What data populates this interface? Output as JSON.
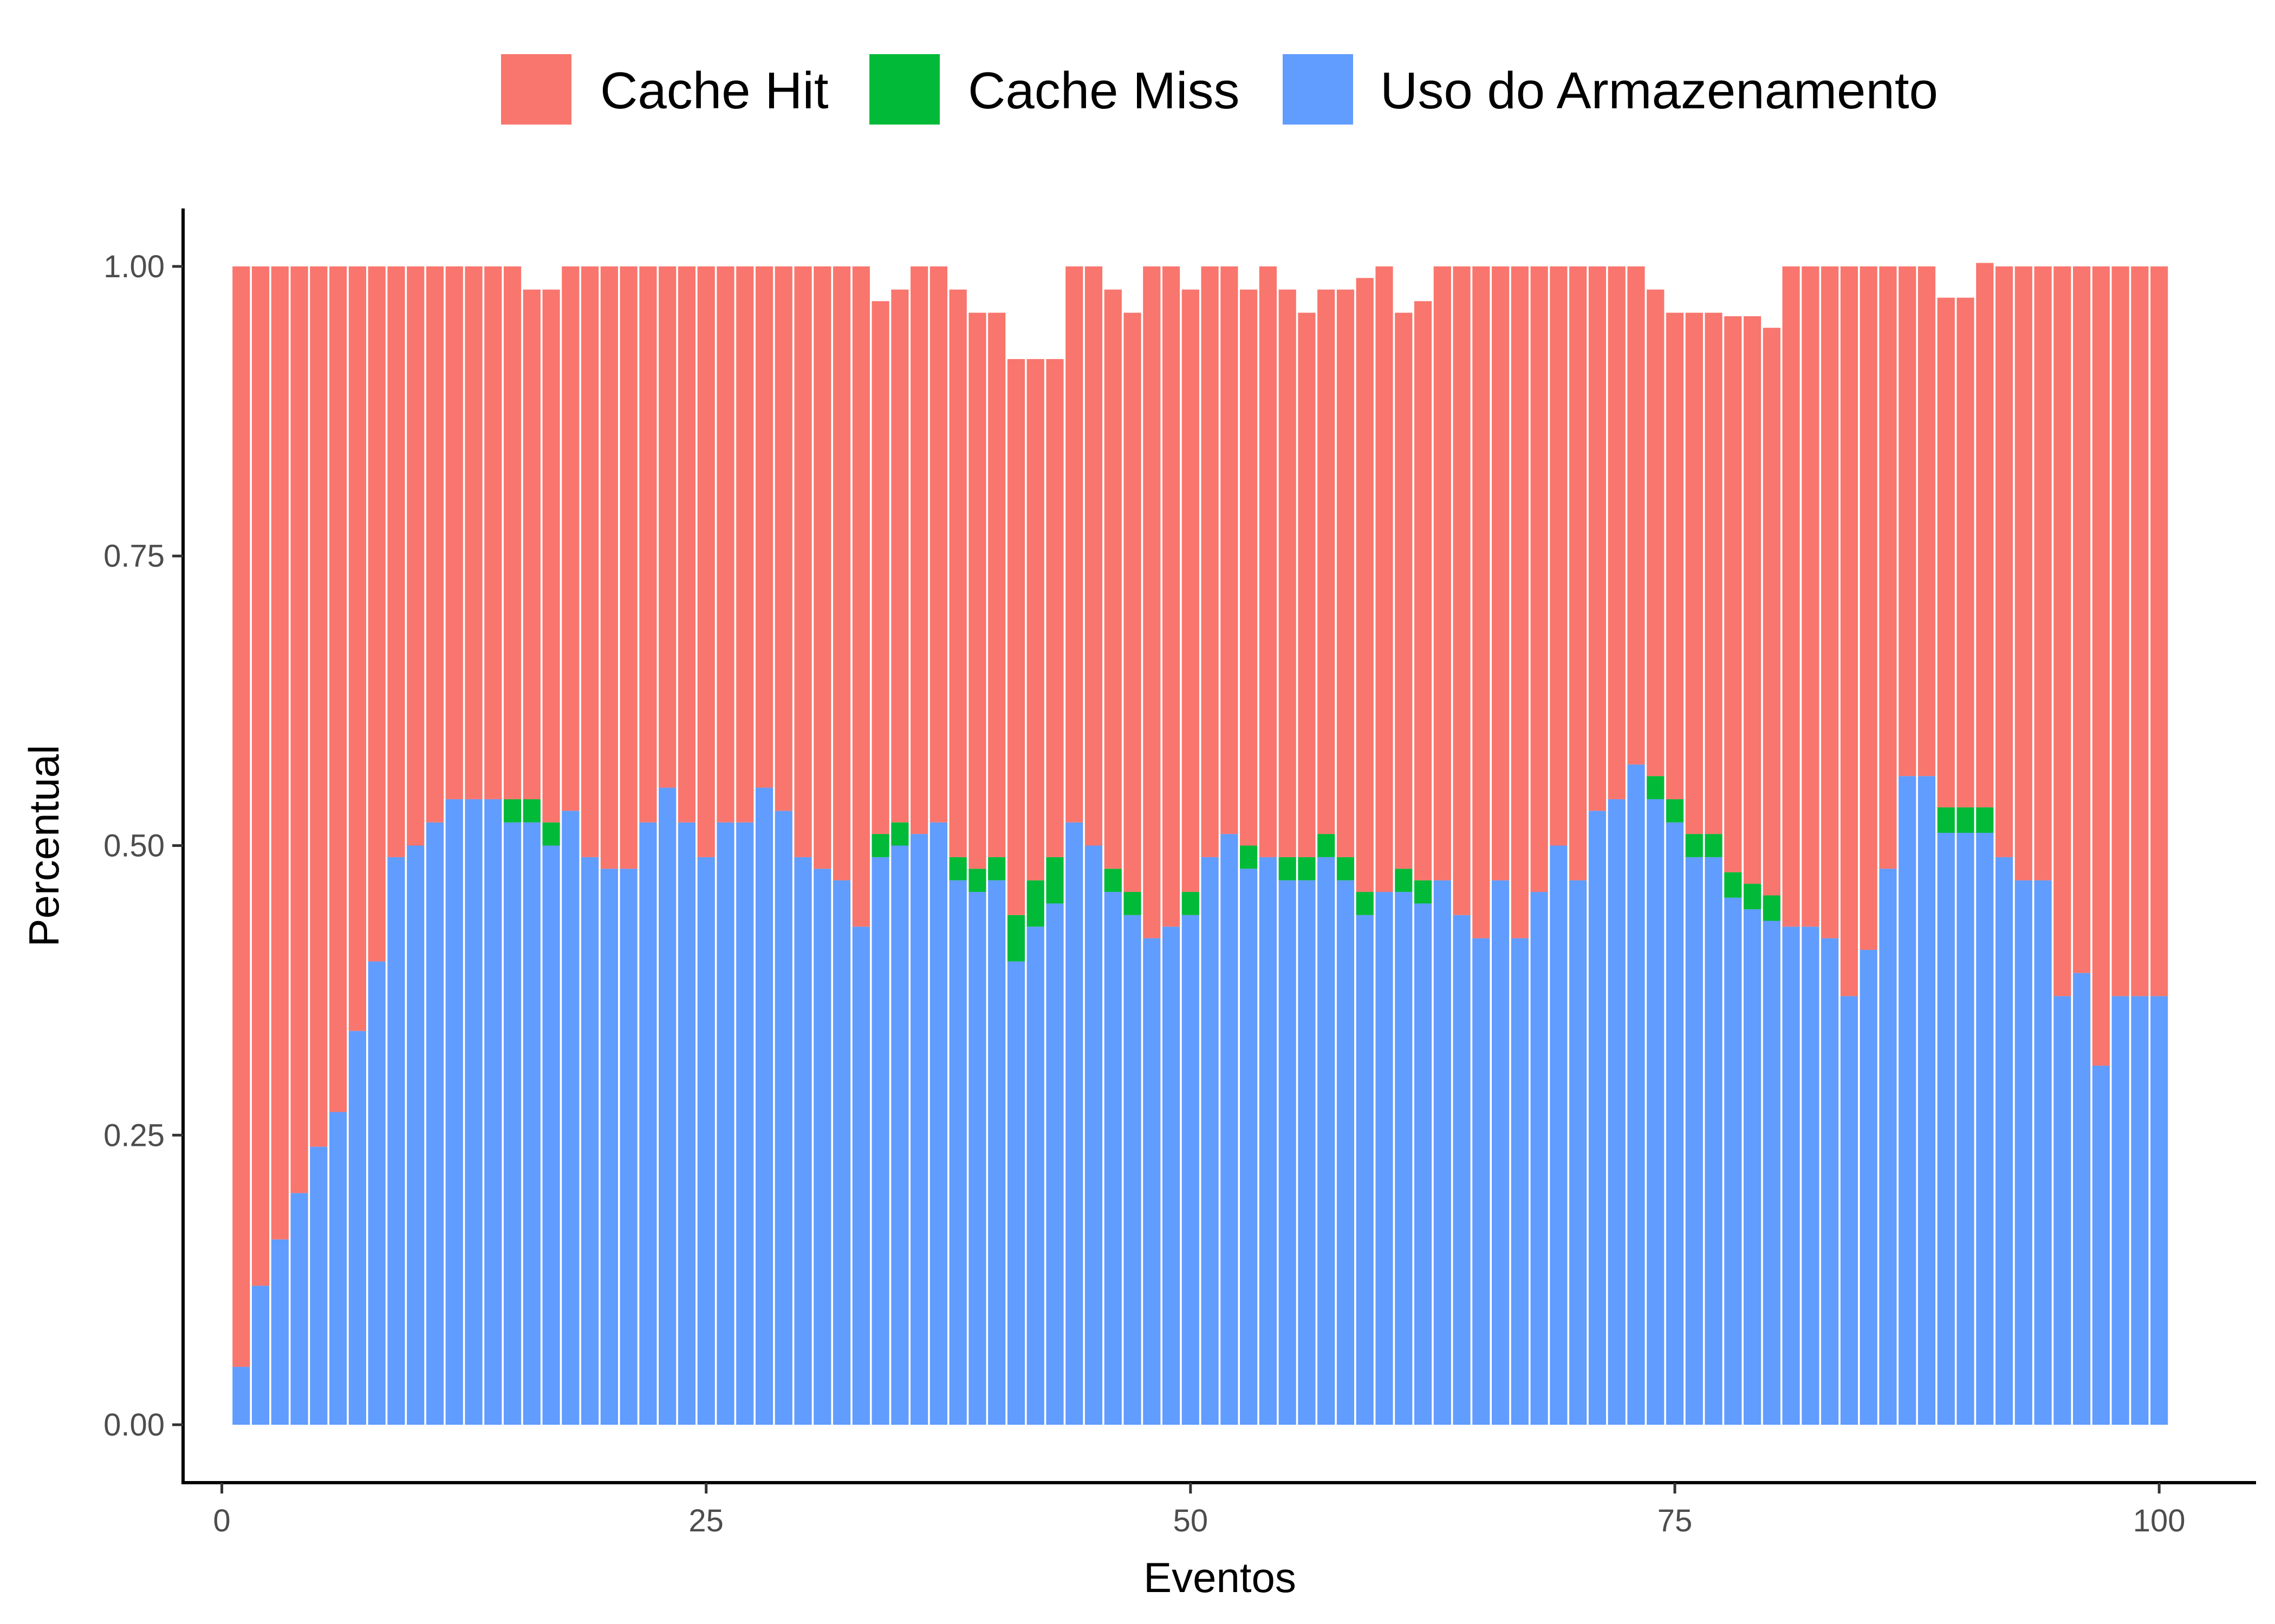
{
  "chart_data": {
    "type": "bar",
    "stacked": true,
    "xlabel": "Eventos",
    "ylabel": "Percentual",
    "xlim": [
      -2,
      105
    ],
    "ylim": [
      -0.05,
      1.05
    ],
    "x_ticks": [
      0,
      25,
      50,
      75,
      100
    ],
    "x_tick_labels": [
      "0",
      "25",
      "50",
      "75",
      "100"
    ],
    "y_ticks": [
      0,
      0.25,
      0.5,
      0.75,
      1.0
    ],
    "y_tick_labels": [
      "0.00",
      "0.25",
      "0.50",
      "0.75",
      "1.00"
    ],
    "grid": false,
    "legend_position": "top",
    "x": [
      1,
      2,
      3,
      4,
      5,
      6,
      7,
      8,
      9,
      10,
      11,
      12,
      13,
      14,
      15,
      16,
      17,
      18,
      19,
      20,
      21,
      22,
      23,
      24,
      25,
      26,
      27,
      28,
      29,
      30,
      31,
      32,
      33,
      34,
      35,
      36,
      37,
      38,
      39,
      40,
      41,
      42,
      43,
      44,
      45,
      46,
      47,
      48,
      49,
      50,
      51,
      52,
      53,
      54,
      55,
      56,
      57,
      58,
      59,
      60,
      61,
      62,
      63,
      64,
      65,
      66,
      67,
      68,
      69,
      70,
      71,
      72,
      73,
      74,
      75,
      76,
      77,
      78,
      79,
      80,
      81,
      82,
      83,
      84,
      85,
      86,
      87,
      88,
      89,
      90,
      91,
      92,
      93,
      94,
      95,
      96,
      97,
      98,
      99,
      100
    ],
    "series": [
      {
        "name": "Cache Hit",
        "color": "#F8766D",
        "values": [
          0.95,
          0.88,
          0.84,
          0.8,
          0.76,
          0.73,
          0.66,
          0.6,
          0.51,
          0.5,
          0.48,
          0.46,
          0.46,
          0.46,
          0.46,
          0.44,
          0.46,
          0.47,
          0.51,
          0.52,
          0.52,
          0.48,
          0.45,
          0.48,
          0.51,
          0.48,
          0.48,
          0.45,
          0.47,
          0.51,
          0.52,
          0.53,
          0.57,
          0.46,
          0.46,
          0.49,
          0.48,
          0.49,
          0.48,
          0.47,
          0.48,
          0.45,
          0.43,
          0.48,
          0.5,
          0.5,
          0.5,
          0.58,
          0.57,
          0.52,
          0.51,
          0.49,
          0.48,
          0.51,
          0.49,
          0.47,
          0.47,
          0.49,
          0.53,
          0.54,
          0.48,
          0.5,
          0.53,
          0.56,
          0.58,
          0.53,
          0.58,
          0.54,
          0.5,
          0.53,
          0.47,
          0.46,
          0.43,
          0.42,
          0.42,
          0.45,
          0.45,
          0.48,
          0.49,
          0.49,
          0.57,
          0.57,
          0.58,
          0.63,
          0.59,
          0.52,
          0.44,
          0.44,
          0.44,
          0.44,
          0.47,
          0.51,
          0.53,
          0.53,
          0.63,
          0.61,
          0.69,
          0.63,
          0.63,
          0.63
        ]
      },
      {
        "name": "Cache Miss",
        "color": "#00BA38",
        "values": [
          0,
          0,
          0,
          0,
          0,
          0,
          0,
          0,
          0,
          0,
          0,
          0,
          0,
          0,
          0.02,
          0.02,
          0.02,
          0,
          0,
          0,
          0,
          0,
          0,
          0,
          0,
          0,
          0,
          0,
          0,
          0,
          0,
          0,
          0,
          0.02,
          0.02,
          0,
          0,
          0.02,
          0.02,
          0.02,
          0.04,
          0.04,
          0.04,
          0,
          0,
          0.02,
          0.02,
          0,
          0,
          0.02,
          0,
          0,
          0.02,
          0,
          0.02,
          0.02,
          0.02,
          0.02,
          0.02,
          0,
          0.02,
          0.02,
          0,
          0,
          0,
          0,
          0,
          0,
          0,
          0,
          0,
          0,
          0,
          0.02,
          0.02,
          0.02,
          0.02,
          0.022,
          0.022,
          0.022,
          0,
          0,
          0,
          0,
          0,
          0,
          0,
          0,
          0.022,
          0.022,
          0.022,
          0,
          0,
          0,
          0,
          0,
          0,
          0,
          0,
          0
        ]
      },
      {
        "name": "Uso do Armazenamento",
        "color": "#619CFF",
        "values": [
          0.05,
          0.12,
          0.16,
          0.2,
          0.24,
          0.27,
          0.34,
          0.4,
          0.49,
          0.5,
          0.52,
          0.54,
          0.54,
          0.54,
          0.52,
          0.52,
          0.5,
          0.53,
          0.49,
          0.48,
          0.48,
          0.52,
          0.55,
          0.52,
          0.49,
          0.52,
          0.52,
          0.55,
          0.53,
          0.49,
          0.48,
          0.47,
          0.43,
          0.49,
          0.5,
          0.51,
          0.52,
          0.47,
          0.46,
          0.47,
          0.4,
          0.43,
          0.45,
          0.52,
          0.5,
          0.46,
          0.44,
          0.42,
          0.43,
          0.44,
          0.49,
          0.51,
          0.48,
          0.49,
          0.47,
          0.47,
          0.49,
          0.47,
          0.44,
          0.46,
          0.46,
          0.45,
          0.47,
          0.44,
          0.42,
          0.47,
          0.42,
          0.46,
          0.5,
          0.47,
          0.53,
          0.54,
          0.57,
          0.54,
          0.52,
          0.49,
          0.49,
          0.455,
          0.445,
          0.435,
          0.43,
          0.43,
          0.42,
          0.37,
          0.41,
          0.48,
          0.56,
          0.56,
          0.511,
          0.511,
          0.511,
          0.49,
          0.47,
          0.47,
          0.37,
          0.39,
          0.31,
          0.37,
          0.37,
          0.37
        ]
      }
    ]
  }
}
